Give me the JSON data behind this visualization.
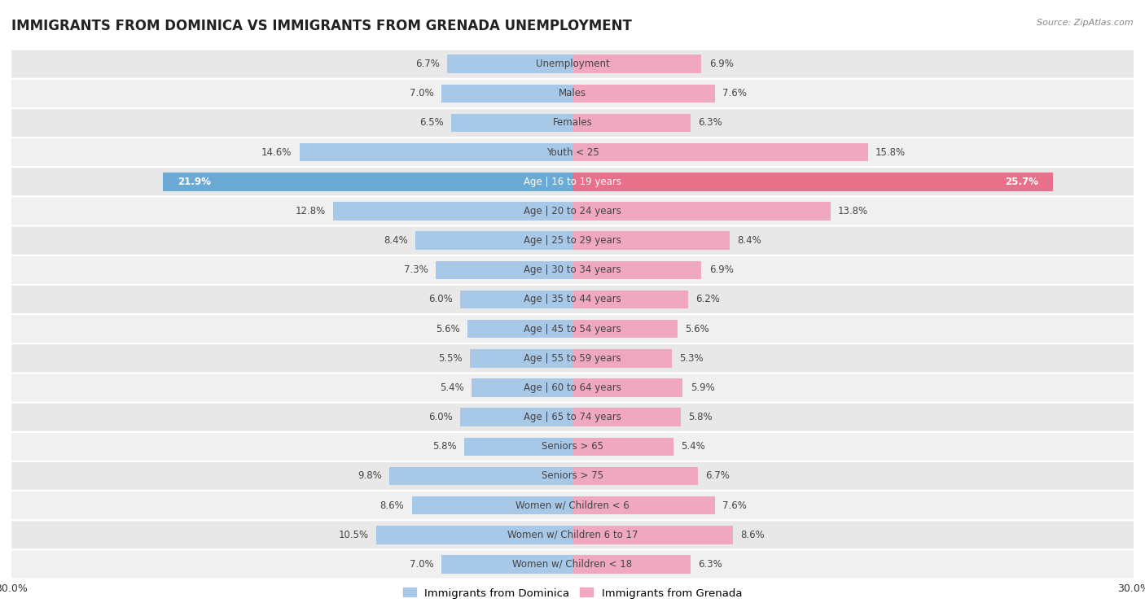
{
  "title": "IMMIGRANTS FROM DOMINICA VS IMMIGRANTS FROM GRENADA UNEMPLOYMENT",
  "source": "Source: ZipAtlas.com",
  "categories": [
    "Unemployment",
    "Males",
    "Females",
    "Youth < 25",
    "Age | 16 to 19 years",
    "Age | 20 to 24 years",
    "Age | 25 to 29 years",
    "Age | 30 to 34 years",
    "Age | 35 to 44 years",
    "Age | 45 to 54 years",
    "Age | 55 to 59 years",
    "Age | 60 to 64 years",
    "Age | 65 to 74 years",
    "Seniors > 65",
    "Seniors > 75",
    "Women w/ Children < 6",
    "Women w/ Children 6 to 17",
    "Women w/ Children < 18"
  ],
  "dominica_values": [
    6.7,
    7.0,
    6.5,
    14.6,
    21.9,
    12.8,
    8.4,
    7.3,
    6.0,
    5.6,
    5.5,
    5.4,
    6.0,
    5.8,
    9.8,
    8.6,
    10.5,
    7.0
  ],
  "grenada_values": [
    6.9,
    7.6,
    6.3,
    15.8,
    25.7,
    13.8,
    8.4,
    6.9,
    6.2,
    5.6,
    5.3,
    5.9,
    5.8,
    5.4,
    6.7,
    7.6,
    8.6,
    6.3
  ],
  "dominica_color": "#a8c8e8",
  "grenada_color": "#f0a8c0",
  "dominica_highlight_color": "#6aaad4",
  "grenada_highlight_color": "#e8708a",
  "highlight_row": 4,
  "xlim": 30.0,
  "bar_height": 0.62,
  "row_bg_color": "#e8e8e8",
  "row_bg_alt_color": "#f0f0f0",
  "label_fontsize": 8.5,
  "value_fontsize": 8.5,
  "title_fontsize": 12,
  "legend_labels": [
    "Immigrants from Dominica",
    "Immigrants from Grenada"
  ]
}
